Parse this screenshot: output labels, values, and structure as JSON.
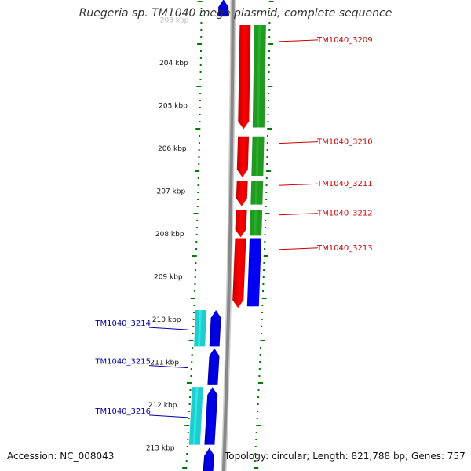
{
  "title": "Ruegeria sp. TM1040 mega plasmid, complete sequence",
  "footer": {
    "accession": "Accession: NC_008043",
    "summary": "Topology: circular; Length: 821,788 bp; Genes: 757"
  },
  "colors": {
    "forward_gene": "#ff0000",
    "forward_cds": "#229922",
    "reverse_gene": "#0000ee",
    "reverse_cds": "#22cccc",
    "backbone": "#888888",
    "tick": "#007700",
    "forward_label": "#cc0000",
    "reverse_label": "#0000aa"
  },
  "scale": {
    "top_kbp_label": "203 kbp",
    "labels": [
      "204 kbp",
      "205 kbp",
      "206 kbp",
      "207 kbp",
      "208 kbp",
      "209 kbp",
      "210 kbp",
      "211 kbp",
      "212 kbp",
      "213 kbp"
    ]
  },
  "genes": {
    "forward": [
      {
        "label": "TM1040_3209",
        "start_kbp": 203.12,
        "end_kbp": 205.55
      },
      {
        "label": "TM1040_3210",
        "start_kbp": 205.72,
        "end_kbp": 206.68
      },
      {
        "label": "TM1040_3211",
        "start_kbp": 206.76,
        "end_kbp": 207.35
      },
      {
        "label": "TM1040_3212",
        "start_kbp": 207.44,
        "end_kbp": 208.08
      },
      {
        "label": "TM1040_3213",
        "start_kbp": 208.1,
        "end_kbp": 209.73
      }
    ],
    "reverse": [
      {
        "label": "TM1040_3214",
        "start_kbp": 209.78,
        "end_kbp": 210.63
      },
      {
        "label": "TM1040_3215",
        "start_kbp": 210.67,
        "end_kbp": 211.52
      },
      {
        "label": "TM1040_3216",
        "start_kbp": 211.58,
        "end_kbp": 212.93
      },
      {
        "label": "",
        "start_kbp": 213.0,
        "end_kbp": 213.55
      },
      {
        "label": "",
        "start_kbp": 202.52,
        "end_kbp": 202.92
      }
    ]
  }
}
